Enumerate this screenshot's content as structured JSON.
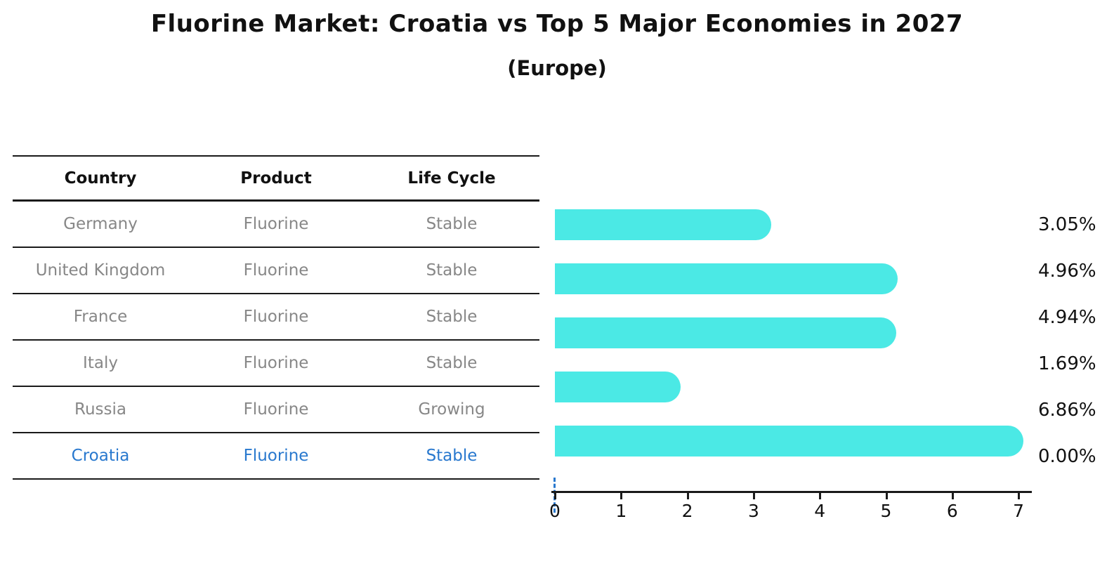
{
  "title": "Fluorine Market: Croatia vs Top 5 Major Economies in 2027",
  "subtitle": "(Europe)",
  "colors": {
    "bar": "#4be9e5",
    "highlight_blue": "#2878ce",
    "table_text_gray": "#878787",
    "text_black": "#111111"
  },
  "table": {
    "headers": [
      "Country",
      "Product",
      "Life Cycle"
    ],
    "rows": [
      {
        "country": "Germany",
        "product": "Fluorine",
        "life_cycle": "Stable",
        "highlighted": false
      },
      {
        "country": "United Kingdom",
        "product": "Fluorine",
        "life_cycle": "Stable",
        "highlighted": false
      },
      {
        "country": "France",
        "product": "Fluorine",
        "life_cycle": "Stable",
        "highlighted": false
      },
      {
        "country": "Italy",
        "product": "Fluorine",
        "life_cycle": "Stable",
        "highlighted": false
      },
      {
        "country": "Russia",
        "product": "Fluorine",
        "life_cycle": "Growing",
        "highlighted": false
      },
      {
        "country": "Croatia",
        "product": "Fluorine",
        "life_cycle": "Stable",
        "highlighted": true
      }
    ]
  },
  "chart_data": {
    "type": "bar",
    "orientation": "horizontal",
    "categories": [
      "Germany",
      "United Kingdom",
      "France",
      "Italy",
      "Russia",
      "Croatia"
    ],
    "values": [
      3.05,
      4.96,
      4.94,
      1.69,
      6.86,
      0.0
    ],
    "value_labels": [
      "3.05%",
      "4.96%",
      "4.94%",
      "1.69%",
      "6.86%",
      "0.00%"
    ],
    "title": "Fluorine Market: Croatia vs Top 5 Major Economies in 2027",
    "subtitle": "(Europe)",
    "xlabel": "",
    "ylabel": "",
    "xlim": [
      0,
      7
    ],
    "x_ticks": [
      "0",
      "1",
      "2",
      "3",
      "4",
      "5",
      "6",
      "7"
    ],
    "grid": false,
    "legend": false,
    "bar_color": "#4be9e5",
    "zero_value_marker": "dashed blue vertical line at x=0"
  }
}
